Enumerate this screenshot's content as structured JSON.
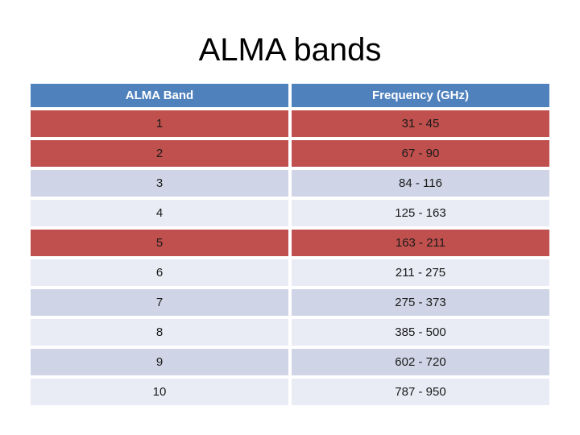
{
  "slide": {
    "title": "ALMA bands"
  },
  "table": {
    "columns": [
      {
        "key": "band",
        "label": "ALMA Band"
      },
      {
        "key": "freq",
        "label": "Frequency (GHz)"
      }
    ],
    "rows": [
      {
        "band": "1",
        "freq": "31 - 45",
        "highlight": true
      },
      {
        "band": "2",
        "freq": "67 - 90",
        "highlight": true
      },
      {
        "band": "3",
        "freq": "84 - 116",
        "highlight": false
      },
      {
        "band": "4",
        "freq": "125 - 163",
        "highlight": false
      },
      {
        "band": "5",
        "freq": "163 - 211",
        "highlight": true
      },
      {
        "band": "6",
        "freq": "211 - 275",
        "highlight": false
      },
      {
        "band": "7",
        "freq": "275 - 373",
        "highlight": false
      },
      {
        "band": "8",
        "freq": "385 - 500",
        "highlight": false
      },
      {
        "band": "9",
        "freq": "602 - 720",
        "highlight": false
      },
      {
        "band": "10",
        "freq": "787 - 950",
        "highlight": false
      }
    ]
  },
  "colors": {
    "header_bg": "#4F81BD",
    "header_text": "#FFFFFF",
    "highlight_bg": "#C0504D",
    "band_a_bg": "#CFD5E6",
    "band_b_bg": "#E9EBF5",
    "cell_text": "#1A1A1A",
    "title_text": "#000000"
  }
}
